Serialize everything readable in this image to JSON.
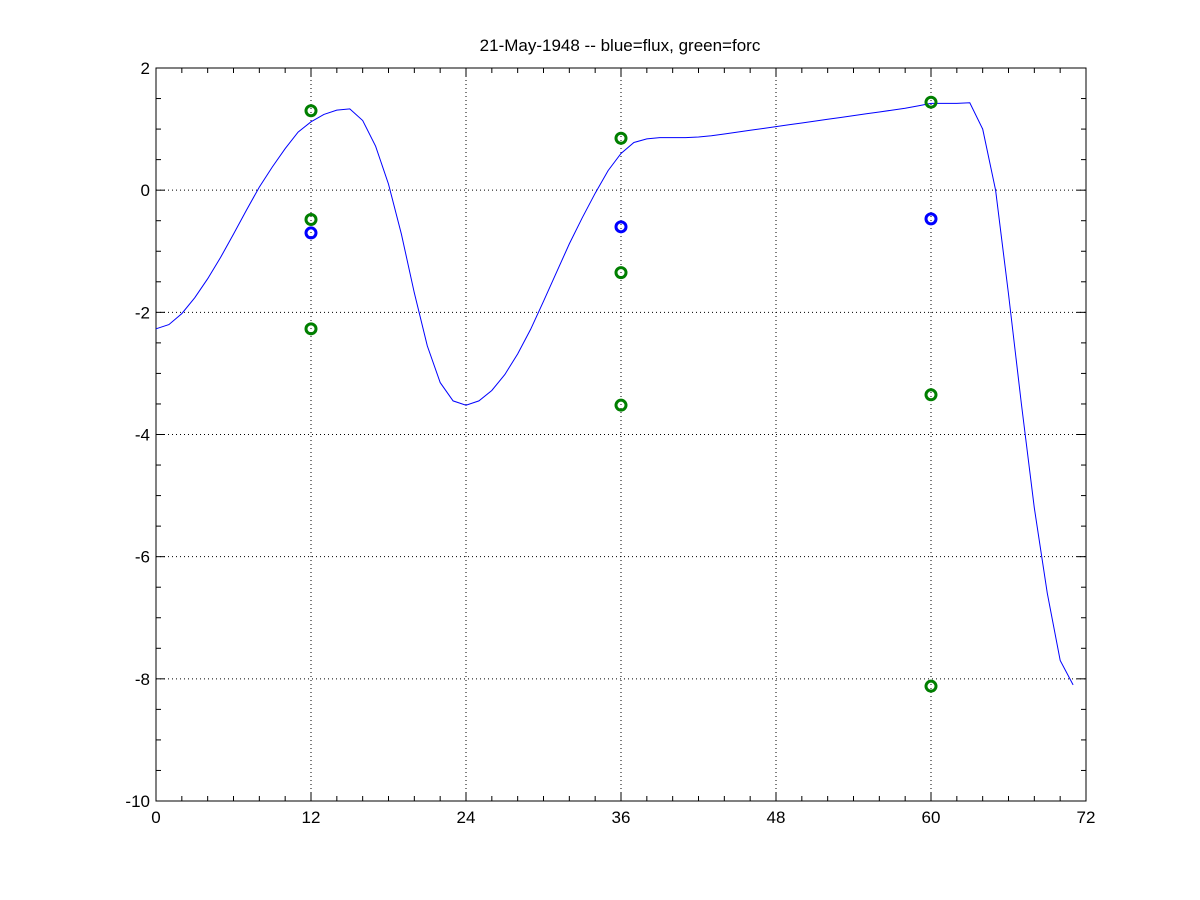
{
  "chart_data": {
    "type": "line",
    "title": "21-May-1948 -- blue=flux, green=forc",
    "xlabel": "",
    "ylabel": "",
    "xlim": [
      0,
      72
    ],
    "ylim": [
      -10,
      2
    ],
    "x_ticks": [
      0,
      12,
      24,
      36,
      48,
      60,
      72
    ],
    "y_ticks": [
      -10,
      -8,
      -6,
      -4,
      -2,
      0,
      2
    ],
    "grid": true,
    "colors": {
      "line": "#0000ff",
      "flux": "#0000ff",
      "forc": "#007f00",
      "grid": "#000000"
    },
    "series": [
      {
        "type": "line",
        "x": [
          0,
          1,
          2,
          3,
          4,
          5,
          6,
          7,
          8,
          9,
          10,
          11,
          12,
          13,
          14,
          15,
          16,
          17,
          18,
          19,
          20,
          21,
          22,
          23,
          24,
          25,
          26,
          27,
          28,
          29,
          30,
          31,
          32,
          33,
          34,
          35,
          36,
          37,
          38,
          39,
          40,
          41,
          42,
          43,
          44,
          45,
          46,
          47,
          48,
          49,
          50,
          51,
          52,
          53,
          54,
          55,
          56,
          57,
          58,
          59,
          60,
          61,
          62,
          63,
          64,
          65,
          66,
          67,
          68,
          69,
          70,
          71
        ],
        "y": [
          -2.27,
          -2.2,
          -2.02,
          -1.76,
          -1.45,
          -1.1,
          -0.72,
          -0.33,
          0.05,
          0.38,
          0.68,
          0.95,
          1.12,
          1.24,
          1.31,
          1.33,
          1.14,
          0.72,
          0.1,
          -0.72,
          -1.68,
          -2.55,
          -3.15,
          -3.45,
          -3.52,
          -3.45,
          -3.28,
          -3.02,
          -2.68,
          -2.28,
          -1.82,
          -1.35,
          -0.88,
          -0.45,
          -0.05,
          0.32,
          0.6,
          0.78,
          0.84,
          0.86,
          0.86,
          0.86,
          0.87,
          0.89,
          0.92,
          0.95,
          0.98,
          1.01,
          1.04,
          1.07,
          1.1,
          1.13,
          1.16,
          1.19,
          1.22,
          1.25,
          1.28,
          1.31,
          1.34,
          1.38,
          1.42,
          1.42,
          1.42,
          1.43,
          1.0,
          0.0,
          -1.7,
          -3.5,
          -5.2,
          -6.6,
          -7.7,
          -8.1
        ]
      },
      {
        "name": "flux",
        "type": "scatter",
        "x": [
          12,
          36,
          60
        ],
        "y": [
          -0.7,
          -0.6,
          -0.47
        ]
      },
      {
        "name": "forc",
        "type": "scatter",
        "x": [
          12,
          12,
          12,
          36,
          36,
          36,
          60,
          60,
          60
        ],
        "y": [
          1.3,
          -0.48,
          -2.27,
          0.85,
          -1.35,
          -3.52,
          1.44,
          -3.35,
          -8.12
        ]
      }
    ]
  }
}
